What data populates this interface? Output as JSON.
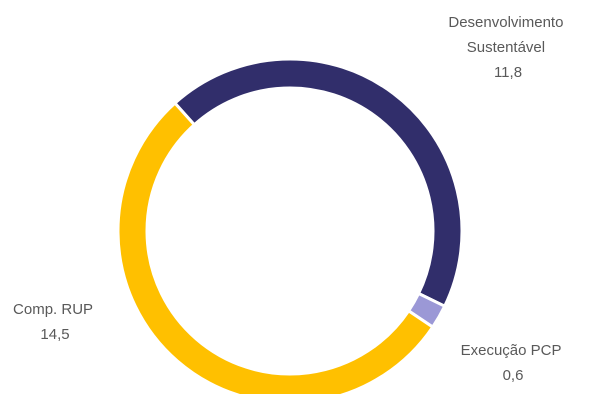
{
  "chart_data": {
    "type": "pie",
    "variant": "donut",
    "title": "",
    "legend": "none",
    "slices": [
      {
        "name_lines": [
          "Desenvolvimento",
          "Sustentável"
        ],
        "value": 11.8,
        "value_label": "11,8",
        "color": "#312E6B"
      },
      {
        "name_lines": [
          "Execução PCP"
        ],
        "value": 0.6,
        "value_label": "0,6",
        "color": "#9B98D6"
      },
      {
        "name_lines": [
          "Comp. RUP"
        ],
        "value": 14.5,
        "value_label": "14,5",
        "color": "#FFC000"
      }
    ]
  }
}
